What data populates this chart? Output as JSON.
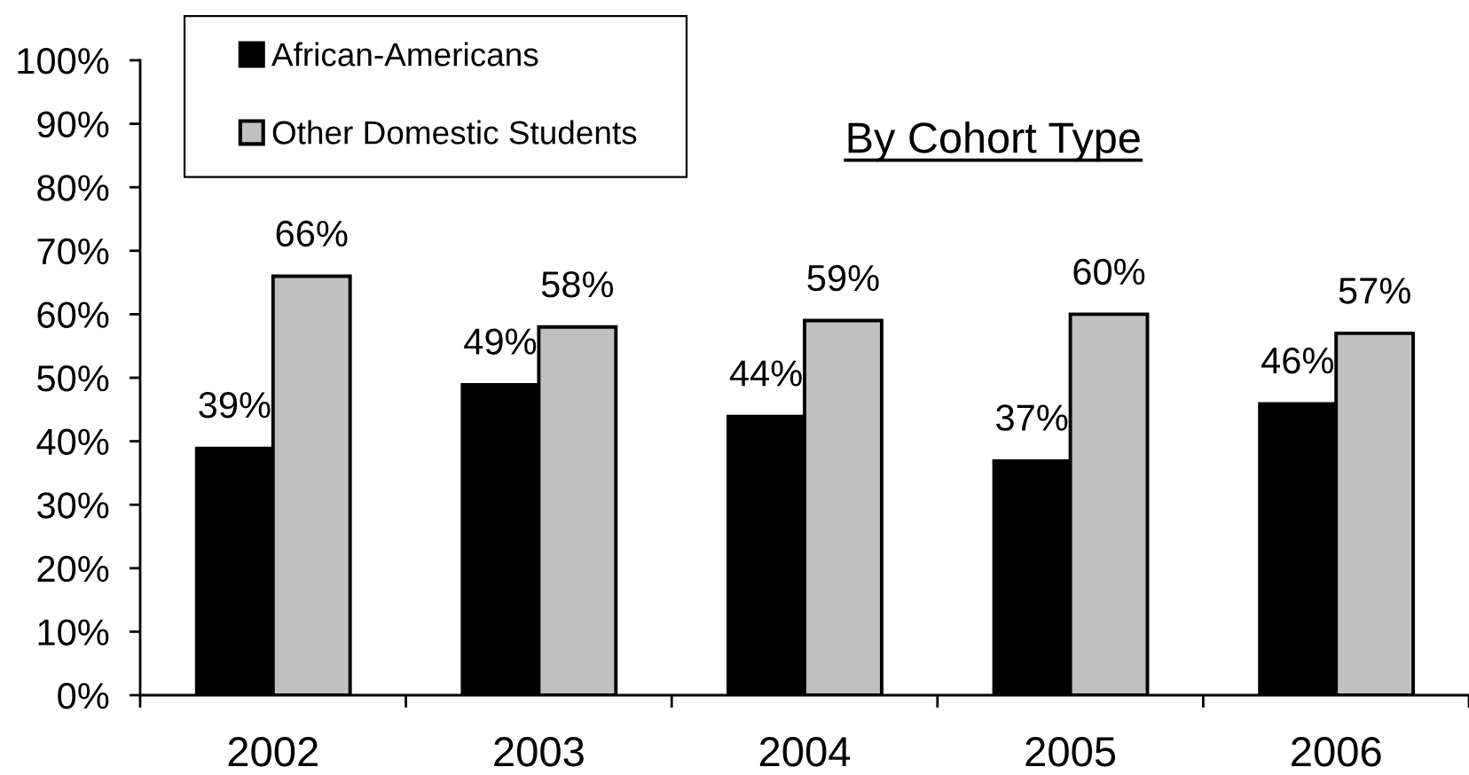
{
  "chart_data": {
    "type": "bar",
    "title": "By Cohort Type",
    "categories": [
      "2002",
      "2003",
      "2004",
      "2005",
      "2006"
    ],
    "series": [
      {
        "name": "African-Americans",
        "color": "#000000",
        "values": [
          39,
          49,
          44,
          37,
          46
        ],
        "value_labels": [
          "39%",
          "49%",
          "44%",
          "37%",
          "46%"
        ]
      },
      {
        "name": "Other Domestic Students",
        "color": "#c0c0c0",
        "values": [
          66,
          58,
          59,
          60,
          57
        ],
        "value_labels": [
          "66%",
          "58%",
          "59%",
          "60%",
          "57%"
        ]
      }
    ],
    "ylim": [
      0,
      100
    ],
    "yticks": [
      {
        "value": 0,
        "label": "0%"
      },
      {
        "value": 10,
        "label": "10%"
      },
      {
        "value": 20,
        "label": "20%"
      },
      {
        "value": 30,
        "label": "30%"
      },
      {
        "value": 40,
        "label": "40%"
      },
      {
        "value": 50,
        "label": "50%"
      },
      {
        "value": 60,
        "label": "60%"
      },
      {
        "value": 70,
        "label": "70%"
      },
      {
        "value": 80,
        "label": "80%"
      },
      {
        "value": 90,
        "label": "90%"
      },
      {
        "value": 100,
        "label": "100%"
      }
    ],
    "legend": "top left"
  }
}
